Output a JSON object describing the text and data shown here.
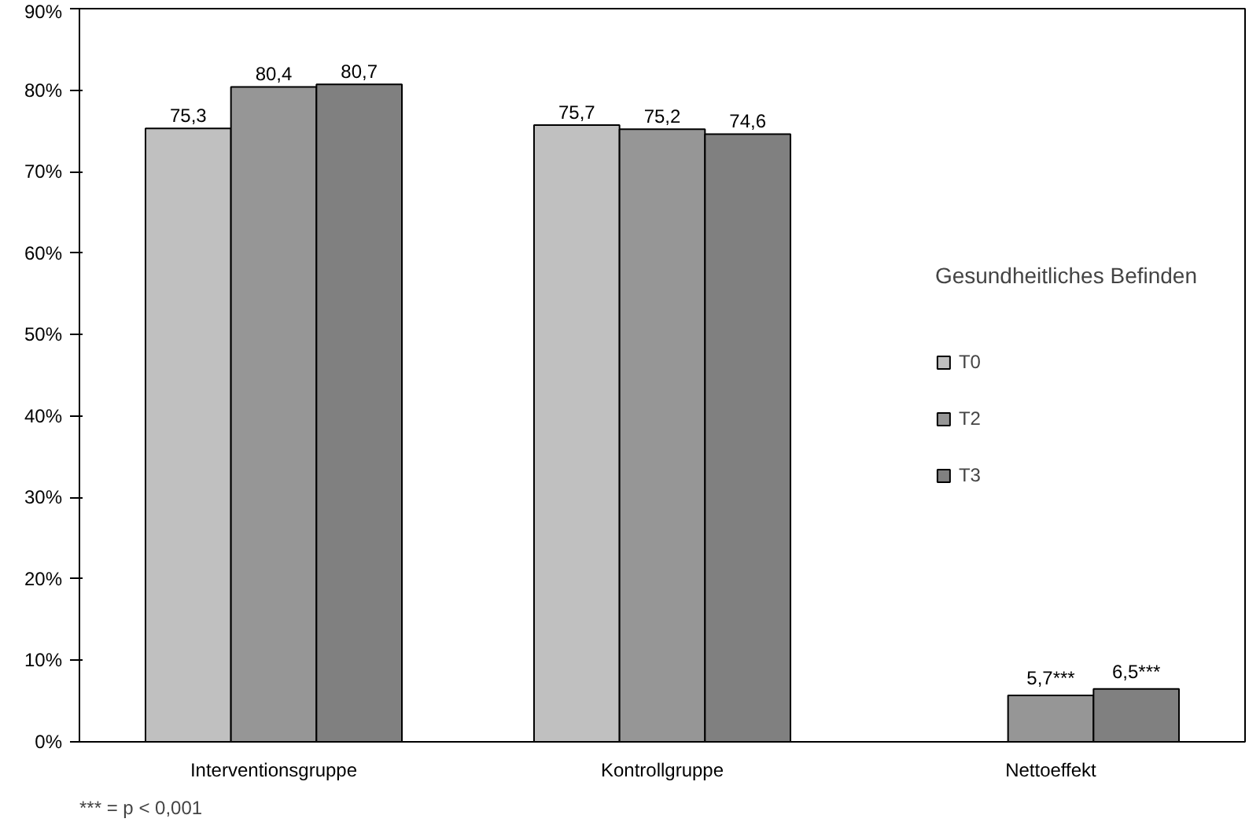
{
  "chart_data": {
    "type": "bar",
    "categories": [
      "Interventionsgruppe",
      "Kontrollgruppe",
      "Nettoeffekt"
    ],
    "series": [
      {
        "name": "T0",
        "color": "#c0c0c0",
        "values": [
          75.3,
          75.7,
          null
        ],
        "value_labels": [
          "75,3",
          "75,7",
          null
        ]
      },
      {
        "name": "T2",
        "color": "#969696",
        "values": [
          80.4,
          75.2,
          5.7
        ],
        "value_labels": [
          "80,4",
          "75,2",
          "5,7***"
        ]
      },
      {
        "name": "T3",
        "color": "#808080",
        "values": [
          80.7,
          74.6,
          6.5
        ],
        "value_labels": [
          "80,7",
          "74,6",
          "6,5***"
        ]
      }
    ],
    "legend_title": "Gesundheitliches Befinden",
    "legend": "right",
    "ylim": [
      0,
      90
    ],
    "yticks": [
      {
        "value": 0,
        "label": "0%"
      },
      {
        "value": 10,
        "label": "10%"
      },
      {
        "value": 20,
        "label": "20%"
      },
      {
        "value": 30,
        "label": "30%"
      },
      {
        "value": 40,
        "label": "40%"
      },
      {
        "value": 50,
        "label": "50%"
      },
      {
        "value": 60,
        "label": "60%"
      },
      {
        "value": 70,
        "label": "70%"
      },
      {
        "value": 80,
        "label": "80%"
      },
      {
        "value": 90,
        "label": "90%"
      }
    ],
    "grid": false,
    "annotations": [
      "*** = p < 0,001"
    ]
  }
}
